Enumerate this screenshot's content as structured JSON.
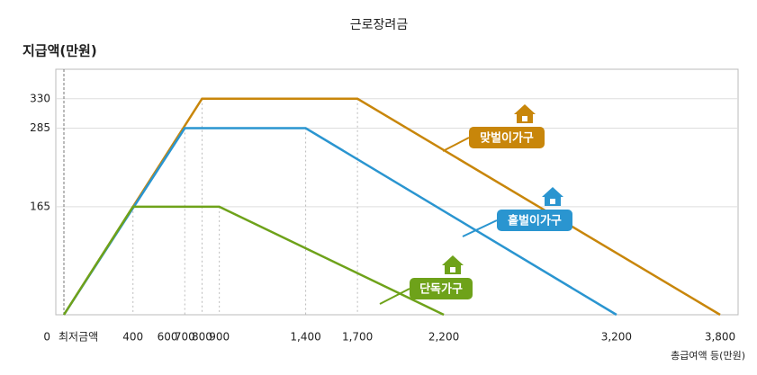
{
  "chart_data": {
    "type": "line",
    "title": "근로장려금",
    "ylabel": "지급액(만원)",
    "xlabel": "총급여액 등(만원)",
    "xlim": [
      0,
      3800
    ],
    "ylim": [
      0,
      375
    ],
    "xticks": [
      {
        "value": 0,
        "label": "최저금액"
      },
      400,
      600,
      700,
      800,
      900,
      {
        "value": 1400,
        "label": "1,400"
      },
      {
        "value": 1700,
        "label": "1,700"
      },
      {
        "value": 2200,
        "label": "2,200"
      },
      {
        "value": 3200,
        "label": "3,200"
      },
      {
        "value": 3800,
        "label": "3,800"
      }
    ],
    "yticks": [
      0,
      165,
      285,
      330
    ],
    "grid": true,
    "series": [
      {
        "name": "맞벌이가구",
        "color": "#c8860a",
        "x": [
          0,
          800,
          1700,
          3800
        ],
        "values": [
          0,
          330,
          330,
          0
        ]
      },
      {
        "name": "홑벌이가구",
        "color": "#2a95d0",
        "x": [
          0,
          700,
          1400,
          3200
        ],
        "values": [
          0,
          285,
          285,
          0
        ]
      },
      {
        "name": "단독가구",
        "color": "#6ea21a",
        "x": [
          0,
          400,
          900,
          2200
        ],
        "values": [
          0,
          165,
          165,
          0
        ]
      }
    ]
  }
}
